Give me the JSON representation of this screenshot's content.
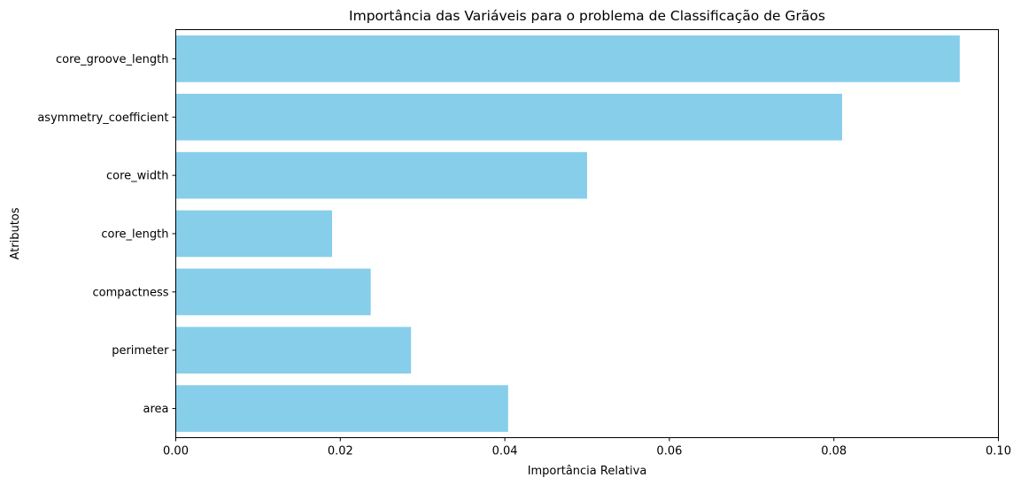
{
  "chart_data": {
    "type": "bar",
    "orientation": "horizontal",
    "title": "Importância das Variáveis para o problema de Classificação de Grãos",
    "xlabel": "Importância Relativa",
    "ylabel": "Atributos",
    "categories": [
      "area",
      "perimeter",
      "compactness",
      "core_length",
      "core_width",
      "asymmetry_coefficient",
      "core_groove_length"
    ],
    "values": [
      0.0404,
      0.0286,
      0.0237,
      0.019,
      0.05,
      0.081,
      0.0953
    ],
    "xlim": [
      0,
      0.1
    ],
    "xticks": [
      "0.00",
      "0.02",
      "0.04",
      "0.06",
      "0.08",
      "0.10"
    ],
    "bar_color": "#87ceeb",
    "grid": false
  }
}
